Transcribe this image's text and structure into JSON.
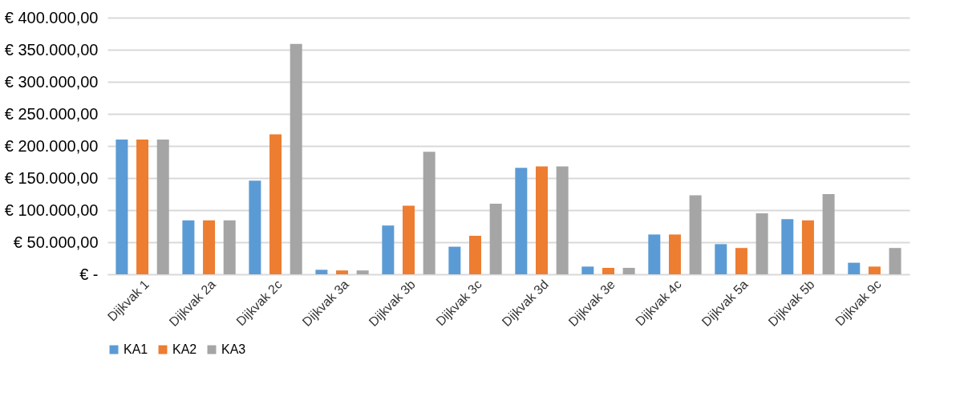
{
  "chart_data": {
    "type": "bar",
    "categories": [
      "Dijkvak 1",
      "Dijkvak 2a",
      "Dijkvak 2c",
      "Dijkvak 3a",
      "Dijkvak 3b",
      "Dijkvak 3c",
      "Dijkvak 3d",
      "Dijkvak 3e",
      "Dijkvak 4c",
      "Dijkvak 5a",
      "Dijkvak 5b",
      "Dijkvak 9c"
    ],
    "series": [
      {
        "name": "KA1",
        "color": "#5b9bd5",
        "values": [
          210000,
          84000,
          146000,
          7000,
          76000,
          43000,
          166000,
          12000,
          62000,
          47000,
          86000,
          18000
        ]
      },
      {
        "name": "KA2",
        "color": "#ed7d31",
        "values": [
          210000,
          84000,
          218000,
          6000,
          107000,
          60000,
          168000,
          10000,
          62000,
          41000,
          84000,
          12000
        ]
      },
      {
        "name": "KA3",
        "color": "#a5a5a5",
        "values": [
          210000,
          84000,
          359000,
          6000,
          191000,
          110000,
          168000,
          10000,
          123000,
          95000,
          125000,
          41000
        ]
      }
    ],
    "ylim": [
      0,
      400000
    ],
    "yticks": [
      {
        "value": 0,
        "label": "€ -"
      },
      {
        "value": 50000,
        "label": "€ 50.000,00"
      },
      {
        "value": 100000,
        "label": "€ 100.000,00"
      },
      {
        "value": 150000,
        "label": "€ 150.000,00"
      },
      {
        "value": 200000,
        "label": "€ 200.000,00"
      },
      {
        "value": 250000,
        "label": "€ 250.000,00"
      },
      {
        "value": 300000,
        "label": "€ 300.000,00"
      },
      {
        "value": 350000,
        "label": "€ 350.000,00"
      },
      {
        "value": 400000,
        "label": "€ 400.000,00"
      }
    ],
    "grid": "y",
    "legend": "bottom"
  }
}
